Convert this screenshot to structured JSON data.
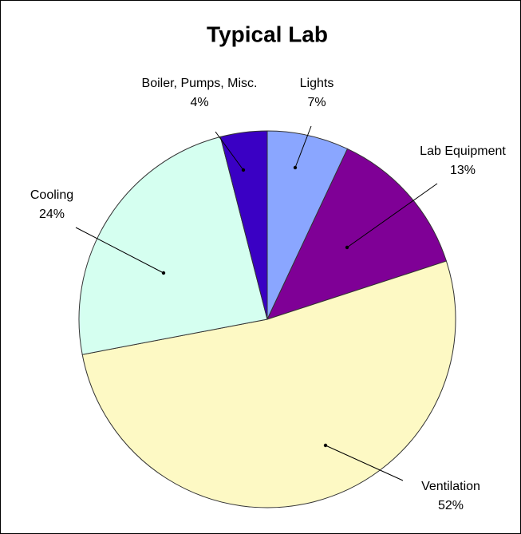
{
  "chart_data": {
    "type": "pie",
    "title": "Typical Lab",
    "categories": [
      "Lights",
      "Lab Equipment",
      "Ventilation",
      "Cooling",
      "Boiler, Pumps, Misc."
    ],
    "values": [
      7,
      13,
      52,
      24,
      4
    ],
    "value_labels": [
      "7%",
      "13%",
      "52%",
      "24%",
      "4%"
    ],
    "colors": [
      "#8aa6ff",
      "#7f0096",
      "#fdf9c4",
      "#d5fff0",
      "#3a00c4"
    ]
  }
}
